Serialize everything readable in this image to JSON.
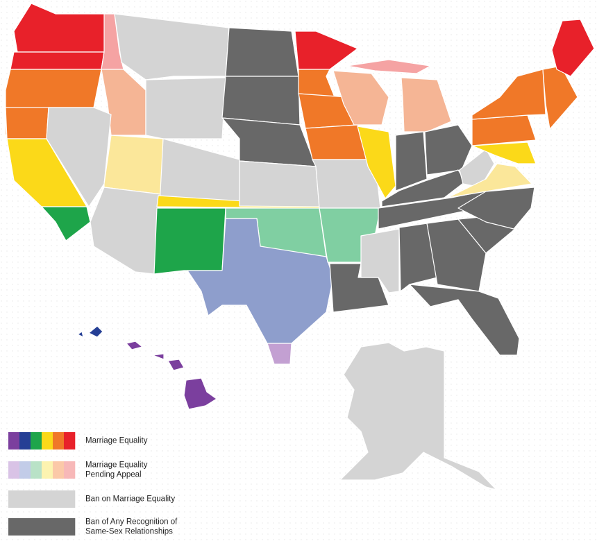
{
  "legend": {
    "items": [
      {
        "lines": [
          "Marriage Equality"
        ]
      },
      {
        "lines": [
          "Marriage Equality",
          "Pending Appeal"
        ]
      },
      {
        "lines": [
          "Ban on Marriage Equality"
        ]
      },
      {
        "lines": [
          "Ban of Any Recognition of",
          "Same-Sex Relationships"
        ]
      }
    ]
  }
}
